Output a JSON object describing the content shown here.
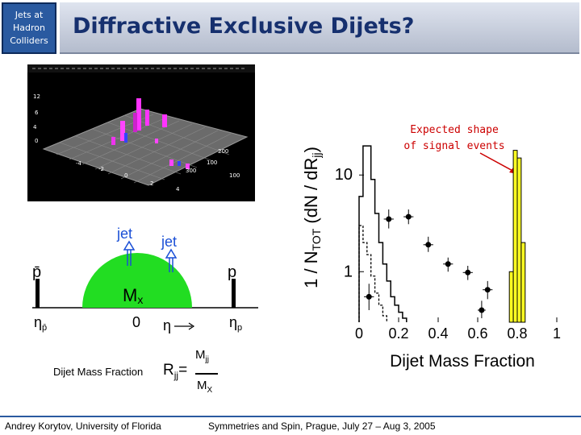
{
  "badge": {
    "lines": [
      "Jets at",
      "Hadron",
      "Colliders"
    ]
  },
  "slide": {
    "title": "Diffractive Exclusive Dijets?"
  },
  "diagram": {
    "pbar_label": "p̄",
    "p_label": "p",
    "jet_left": "jet",
    "jet_right": "jet",
    "mx_label": "M",
    "mx_sub": "x",
    "eta_pbar": "η",
    "eta_pbar_sub": "p̄",
    "eta_p": "η",
    "eta_p_sub": "p",
    "zero_label": "0",
    "eta_label": "η",
    "colors": {
      "blob": "#22dd22",
      "arrow": "#1a4fd6"
    }
  },
  "formula": {
    "label": "Dijet Mass Fraction",
    "R": "R",
    "R_sub": "jj",
    "eq": "=",
    "num": "M",
    "num_sub": "jj",
    "den": "M",
    "den_sub": "X"
  },
  "chart_data": {
    "type": "bar",
    "xlabel": "Dijet Mass Fraction",
    "ylabel_parts": {
      "a": "1 / N",
      "a_sub": "TOT",
      "b": " (dN / dR",
      "b_sub": "jj",
      "c": ")"
    },
    "xlim": [
      0,
      1.0
    ],
    "ylim": [
      0.3,
      40
    ],
    "yscale": "log",
    "x_ticks": [
      "0",
      "0.2",
      "0.4",
      "0.6",
      "0.8",
      "1"
    ],
    "x_tick_values": [
      0,
      0.2,
      0.4,
      0.6,
      0.8,
      1.0
    ],
    "y_ticks": [
      "1",
      "10"
    ],
    "y_tick_values": [
      1,
      10
    ],
    "annotation": {
      "lines": [
        "Expected shape",
        "of signal events"
      ],
      "color": "#cc0000"
    },
    "signal": {
      "bin_edges": [
        0.76,
        0.78,
        0.8,
        0.82,
        0.84
      ],
      "values": [
        1.0,
        18,
        15,
        2.0
      ],
      "color": "#ffff22"
    },
    "solid_hist": {
      "bin_edges": [
        0.0,
        0.02,
        0.04,
        0.06,
        0.08,
        0.1,
        0.12,
        0.14,
        0.16,
        0.18,
        0.2,
        0.22,
        0.24
      ],
      "values": [
        6,
        20,
        20,
        9,
        4,
        2.0,
        1.2,
        0.8,
        0.55,
        0.45,
        0.38,
        0.33
      ]
    },
    "dashed_hist": {
      "bin_edges": [
        0.0,
        0.02,
        0.04,
        0.06,
        0.08,
        0.1,
        0.12,
        0.14
      ],
      "values": [
        3,
        2.0,
        1.5,
        0.9,
        0.6,
        0.45,
        0.35
      ]
    },
    "points": [
      {
        "x": 0.05,
        "y": 0.55,
        "xerr": 0.025,
        "ylo": 0.4,
        "yhi": 0.75
      },
      {
        "x": 0.15,
        "y": 3.5,
        "xerr": 0.025,
        "ylo": 2.8,
        "yhi": 4.4
      },
      {
        "x": 0.25,
        "y": 3.7,
        "xerr": 0.025,
        "ylo": 3.1,
        "yhi": 4.4
      },
      {
        "x": 0.35,
        "y": 1.9,
        "xerr": 0.025,
        "ylo": 1.6,
        "yhi": 2.3
      },
      {
        "x": 0.45,
        "y": 1.2,
        "xerr": 0.025,
        "ylo": 1.0,
        "yhi": 1.4
      },
      {
        "x": 0.55,
        "y": 0.98,
        "xerr": 0.025,
        "ylo": 0.82,
        "yhi": 1.15
      },
      {
        "x": 0.65,
        "y": 0.65,
        "xerr": 0.025,
        "ylo": 0.52,
        "yhi": 0.8
      },
      {
        "x": 0.62,
        "y": 0.4,
        "xerr": 0.02,
        "ylo": 0.33,
        "yhi": 0.5
      }
    ]
  },
  "footer": {
    "left": "Andrey Korytov, University of Florida",
    "right": "Symmetries and Spin, Prague, July 27 – Aug 3, 2005",
    "line_color": "#2a5aa0"
  }
}
